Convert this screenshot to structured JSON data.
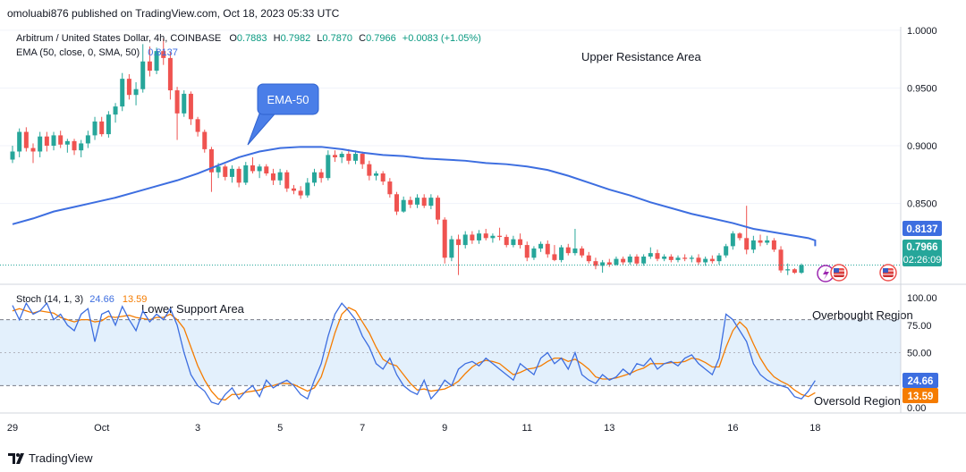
{
  "header": {
    "published": "omoluabi876 published on TradingView.com, Oct 18, 2023 05:33 UTC"
  },
  "legend": {
    "symbol": "Arbitrum / United States Dollar, 4h, COINBASE",
    "open_label": "O",
    "open": "0.7883",
    "high_label": "H",
    "high": "0.7982",
    "low_label": "L",
    "low": "0.7870",
    "close_label": "C",
    "close": "0.7966",
    "change": "+0.0083 (+1.05%)",
    "ema_label": "EMA (50, close, 0, SMA, 50)",
    "ema_value": "0.8137"
  },
  "annotations": {
    "upper_resistance": "Upper Resistance Area",
    "lower_support": "Lower Support Area",
    "ema_callout": "EMA-50",
    "overbought": "Overbought Region",
    "oversold": "Oversold Region"
  },
  "badges": {
    "ema": "0.8137",
    "price": "0.7966",
    "countdown": "02:26:09",
    "stoch_k": "24.66",
    "stoch_d": "13.59"
  },
  "stoch_legend": {
    "label": "Stoch (14, 1, 3)",
    "k": "24.66",
    "d": "13.59"
  },
  "footer": {
    "brand": "TradingView"
  },
  "colors": {
    "up": "#26a69a",
    "down": "#ef5350",
    "ema": "#3d6ee0",
    "stoch_k": "#3d6ee0",
    "stoch_d": "#f57c00",
    "band": "#e3f0fc"
  },
  "chart_data": {
    "type": "candlestick",
    "timeframe": "4h",
    "price_axis": {
      "ticks": [
        "1.0000",
        "0.9500",
        "0.9000",
        "0.8500"
      ],
      "range": [
        0.78,
        1.003
      ]
    },
    "x_axis_labels": [
      "29",
      "Oct",
      "3",
      "5",
      "7",
      "9",
      "11",
      "13",
      "16",
      "18"
    ],
    "x_label_index": [
      0,
      13,
      27,
      39,
      51,
      63,
      75,
      87,
      105,
      117
    ],
    "candles": [
      [
        0.888,
        0.9,
        0.885,
        0.895
      ],
      [
        0.895,
        0.915,
        0.89,
        0.912
      ],
      [
        0.912,
        0.916,
        0.895,
        0.898
      ],
      [
        0.898,
        0.902,
        0.885,
        0.895
      ],
      [
        0.895,
        0.912,
        0.89,
        0.908
      ],
      [
        0.908,
        0.912,
        0.895,
        0.9
      ],
      [
        0.9,
        0.912,
        0.896,
        0.909
      ],
      [
        0.909,
        0.913,
        0.898,
        0.901
      ],
      [
        0.901,
        0.906,
        0.894,
        0.904
      ],
      [
        0.904,
        0.906,
        0.892,
        0.896
      ],
      [
        0.896,
        0.905,
        0.89,
        0.902
      ],
      [
        0.902,
        0.913,
        0.898,
        0.909
      ],
      [
        0.909,
        0.925,
        0.905,
        0.921
      ],
      [
        0.921,
        0.925,
        0.908,
        0.91
      ],
      [
        0.91,
        0.93,
        0.907,
        0.927
      ],
      [
        0.927,
        0.937,
        0.92,
        0.934
      ],
      [
        0.934,
        0.963,
        0.93,
        0.958
      ],
      [
        0.958,
        0.962,
        0.94,
        0.944
      ],
      [
        0.944,
        0.955,
        0.935,
        0.949
      ],
      [
        0.949,
        0.988,
        0.946,
        0.973
      ],
      [
        0.973,
        0.986,
        0.96,
        0.965
      ],
      [
        0.965,
        0.985,
        0.962,
        0.982
      ],
      [
        0.982,
        0.993,
        0.97,
        0.976
      ],
      [
        0.976,
        0.981,
        0.94,
        0.948
      ],
      [
        0.948,
        0.951,
        0.905,
        0.928
      ],
      [
        0.928,
        0.948,
        0.925,
        0.945
      ],
      [
        0.945,
        0.947,
        0.918,
        0.923
      ],
      [
        0.923,
        0.925,
        0.908,
        0.912
      ],
      [
        0.912,
        0.914,
        0.894,
        0.897
      ],
      [
        0.897,
        0.899,
        0.86,
        0.877
      ],
      [
        0.877,
        0.885,
        0.872,
        0.882
      ],
      [
        0.882,
        0.884,
        0.87,
        0.873
      ],
      [
        0.873,
        0.883,
        0.868,
        0.88
      ],
      [
        0.88,
        0.882,
        0.864,
        0.868
      ],
      [
        0.868,
        0.886,
        0.866,
        0.883
      ],
      [
        0.883,
        0.89,
        0.876,
        0.878
      ],
      [
        0.878,
        0.884,
        0.872,
        0.882
      ],
      [
        0.882,
        0.884,
        0.874,
        0.876
      ],
      [
        0.876,
        0.88,
        0.866,
        0.87
      ],
      [
        0.87,
        0.88,
        0.866,
        0.877
      ],
      [
        0.877,
        0.879,
        0.86,
        0.863
      ],
      [
        0.863,
        0.866,
        0.858,
        0.861
      ],
      [
        0.861,
        0.865,
        0.854,
        0.857
      ],
      [
        0.857,
        0.872,
        0.855,
        0.868
      ],
      [
        0.868,
        0.88,
        0.865,
        0.877
      ],
      [
        0.877,
        0.88,
        0.868,
        0.872
      ],
      [
        0.872,
        0.896,
        0.87,
        0.892
      ],
      [
        0.892,
        0.896,
        0.886,
        0.89
      ],
      [
        0.89,
        0.895,
        0.885,
        0.893
      ],
      [
        0.893,
        0.897,
        0.884,
        0.887
      ],
      [
        0.887,
        0.896,
        0.884,
        0.893
      ],
      [
        0.893,
        0.895,
        0.88,
        0.884
      ],
      [
        0.884,
        0.887,
        0.87,
        0.874
      ],
      [
        0.874,
        0.878,
        0.87,
        0.876
      ],
      [
        0.876,
        0.878,
        0.866,
        0.869
      ],
      [
        0.869,
        0.872,
        0.855,
        0.858
      ],
      [
        0.858,
        0.86,
        0.84,
        0.843
      ],
      [
        0.843,
        0.856,
        0.842,
        0.853
      ],
      [
        0.853,
        0.856,
        0.846,
        0.849
      ],
      [
        0.849,
        0.858,
        0.846,
        0.855
      ],
      [
        0.855,
        0.858,
        0.846,
        0.848
      ],
      [
        0.848,
        0.858,
        0.845,
        0.855
      ],
      [
        0.855,
        0.857,
        0.832,
        0.836
      ],
      [
        0.836,
        0.838,
        0.798,
        0.803
      ],
      [
        0.803,
        0.822,
        0.8,
        0.819
      ],
      [
        0.819,
        0.823,
        0.788,
        0.814
      ],
      [
        0.814,
        0.826,
        0.811,
        0.823
      ],
      [
        0.823,
        0.826,
        0.815,
        0.818
      ],
      [
        0.818,
        0.827,
        0.815,
        0.824
      ],
      [
        0.824,
        0.828,
        0.818,
        0.82
      ],
      [
        0.82,
        0.824,
        0.816,
        0.822
      ],
      [
        0.822,
        0.829,
        0.818,
        0.821
      ],
      [
        0.821,
        0.823,
        0.812,
        0.814
      ],
      [
        0.814,
        0.822,
        0.812,
        0.819
      ],
      [
        0.819,
        0.824,
        0.811,
        0.814
      ],
      [
        0.814,
        0.817,
        0.8,
        0.803
      ],
      [
        0.803,
        0.813,
        0.801,
        0.811
      ],
      [
        0.811,
        0.817,
        0.808,
        0.815
      ],
      [
        0.815,
        0.818,
        0.803,
        0.806
      ],
      [
        0.806,
        0.814,
        0.8,
        0.801
      ],
      [
        0.801,
        0.814,
        0.799,
        0.812
      ],
      [
        0.812,
        0.815,
        0.805,
        0.807
      ],
      [
        0.807,
        0.828,
        0.805,
        0.811
      ],
      [
        0.811,
        0.813,
        0.803,
        0.805
      ],
      [
        0.805,
        0.808,
        0.798,
        0.8
      ],
      [
        0.8,
        0.803,
        0.793,
        0.796
      ],
      [
        0.796,
        0.801,
        0.79,
        0.799
      ],
      [
        0.799,
        0.802,
        0.795,
        0.797
      ],
      [
        0.797,
        0.804,
        0.796,
        0.802
      ],
      [
        0.802,
        0.804,
        0.797,
        0.799
      ],
      [
        0.799,
        0.806,
        0.797,
        0.804
      ],
      [
        0.804,
        0.806,
        0.796,
        0.798
      ],
      [
        0.798,
        0.806,
        0.796,
        0.804
      ],
      [
        0.804,
        0.812,
        0.802,
        0.807
      ],
      [
        0.807,
        0.81,
        0.8,
        0.802
      ],
      [
        0.802,
        0.806,
        0.8,
        0.804
      ],
      [
        0.804,
        0.806,
        0.799,
        0.801
      ],
      [
        0.801,
        0.805,
        0.799,
        0.803
      ],
      [
        0.803,
        0.806,
        0.8,
        0.802
      ],
      [
        0.802,
        0.805,
        0.799,
        0.803
      ],
      [
        0.803,
        0.806,
        0.797,
        0.799
      ],
      [
        0.799,
        0.804,
        0.796,
        0.802
      ],
      [
        0.802,
        0.805,
        0.798,
        0.8
      ],
      [
        0.8,
        0.807,
        0.797,
        0.805
      ],
      [
        0.805,
        0.815,
        0.803,
        0.813
      ],
      [
        0.813,
        0.826,
        0.81,
        0.824
      ],
      [
        0.824,
        0.825,
        0.818,
        0.82
      ],
      [
        0.82,
        0.848,
        0.806,
        0.81
      ],
      [
        0.81,
        0.822,
        0.807,
        0.818
      ],
      [
        0.818,
        0.823,
        0.813,
        0.816
      ],
      [
        0.816,
        0.822,
        0.814,
        0.818
      ],
      [
        0.818,
        0.82,
        0.808,
        0.81
      ],
      [
        0.81,
        0.813,
        0.79,
        0.792
      ],
      [
        0.792,
        0.798,
        0.788,
        0.793
      ],
      [
        0.793,
        0.794,
        0.789,
        0.79
      ],
      [
        0.79,
        0.798,
        0.789,
        0.7966
      ]
    ],
    "ema50": [
      0.832,
      0.837,
      0.843,
      0.847,
      0.851,
      0.855,
      0.86,
      0.865,
      0.87,
      0.876,
      0.883,
      0.89,
      0.895,
      0.898,
      0.899,
      0.899,
      0.897,
      0.894,
      0.892,
      0.891,
      0.889,
      0.888,
      0.887,
      0.885,
      0.884,
      0.882,
      0.879,
      0.874,
      0.868,
      0.862,
      0.857,
      0.851,
      0.846,
      0.841,
      0.837,
      0.833,
      0.828,
      0.825,
      0.822,
      0.82,
      0.818,
      0.816,
      0.815,
      0.813
    ],
    "ema_index": [
      0,
      3,
      6,
      9,
      12,
      15,
      18,
      21,
      24,
      27,
      30,
      33,
      36,
      39,
      42,
      45,
      48,
      51,
      54,
      57,
      60,
      63,
      66,
      69,
      72,
      75,
      78,
      81,
      84,
      87,
      90,
      93,
      96,
      99,
      102,
      105,
      108,
      111,
      114,
      116,
      117,
      117,
      117,
      117
    ],
    "stoch": {
      "axis_ticks": [
        "100.00",
        "75.00",
        "50.00",
        "25.00",
        "0.00"
      ],
      "range": [
        0,
        100
      ],
      "overbought": 80,
      "oversold": 20,
      "k": [
        93,
        80,
        95,
        85,
        88,
        95,
        80,
        85,
        75,
        70,
        85,
        90,
        60,
        85,
        88,
        75,
        92,
        80,
        70,
        88,
        78,
        85,
        80,
        90,
        75,
        50,
        30,
        20,
        15,
        5,
        3,
        12,
        18,
        8,
        15,
        20,
        10,
        25,
        18,
        22,
        25,
        20,
        12,
        8,
        25,
        40,
        65,
        85,
        95,
        88,
        80,
        65,
        55,
        40,
        35,
        45,
        30,
        20,
        15,
        12,
        25,
        8,
        15,
        25,
        20,
        35,
        40,
        42,
        38,
        45,
        40,
        35,
        30,
        25,
        40,
        35,
        30,
        45,
        50,
        40,
        45,
        35,
        50,
        30,
        25,
        22,
        30,
        25,
        28,
        35,
        30,
        40,
        38,
        45,
        35,
        40,
        42,
        38,
        45,
        48,
        40,
        35,
        30,
        45,
        85,
        80,
        70,
        60,
        40,
        30,
        25,
        22,
        20,
        18,
        10,
        8,
        15,
        24.66
      ],
      "d": [
        88,
        90,
        88,
        86,
        88,
        87,
        86,
        82,
        80,
        78,
        80,
        80,
        78,
        79,
        83,
        82,
        83,
        84,
        82,
        81,
        80,
        82,
        82,
        85,
        80,
        72,
        55,
        38,
        25,
        15,
        8,
        7,
        12,
        12,
        14,
        15,
        16,
        19,
        20,
        22,
        22,
        21,
        18,
        15,
        18,
        28,
        47,
        68,
        85,
        91,
        88,
        78,
        68,
        55,
        44,
        40,
        38,
        30,
        22,
        16,
        17,
        15,
        16,
        17,
        20,
        24,
        31,
        37,
        41,
        43,
        42,
        40,
        35,
        30,
        32,
        35,
        36,
        38,
        42,
        45,
        45,
        42,
        44,
        40,
        35,
        28,
        26,
        26,
        27,
        29,
        31,
        34,
        36,
        40,
        40,
        40,
        41,
        41,
        42,
        45,
        44,
        41,
        37,
        37,
        55,
        70,
        78,
        72,
        58,
        45,
        35,
        28,
        24,
        21,
        16,
        12,
        10,
        13.59
      ]
    }
  }
}
